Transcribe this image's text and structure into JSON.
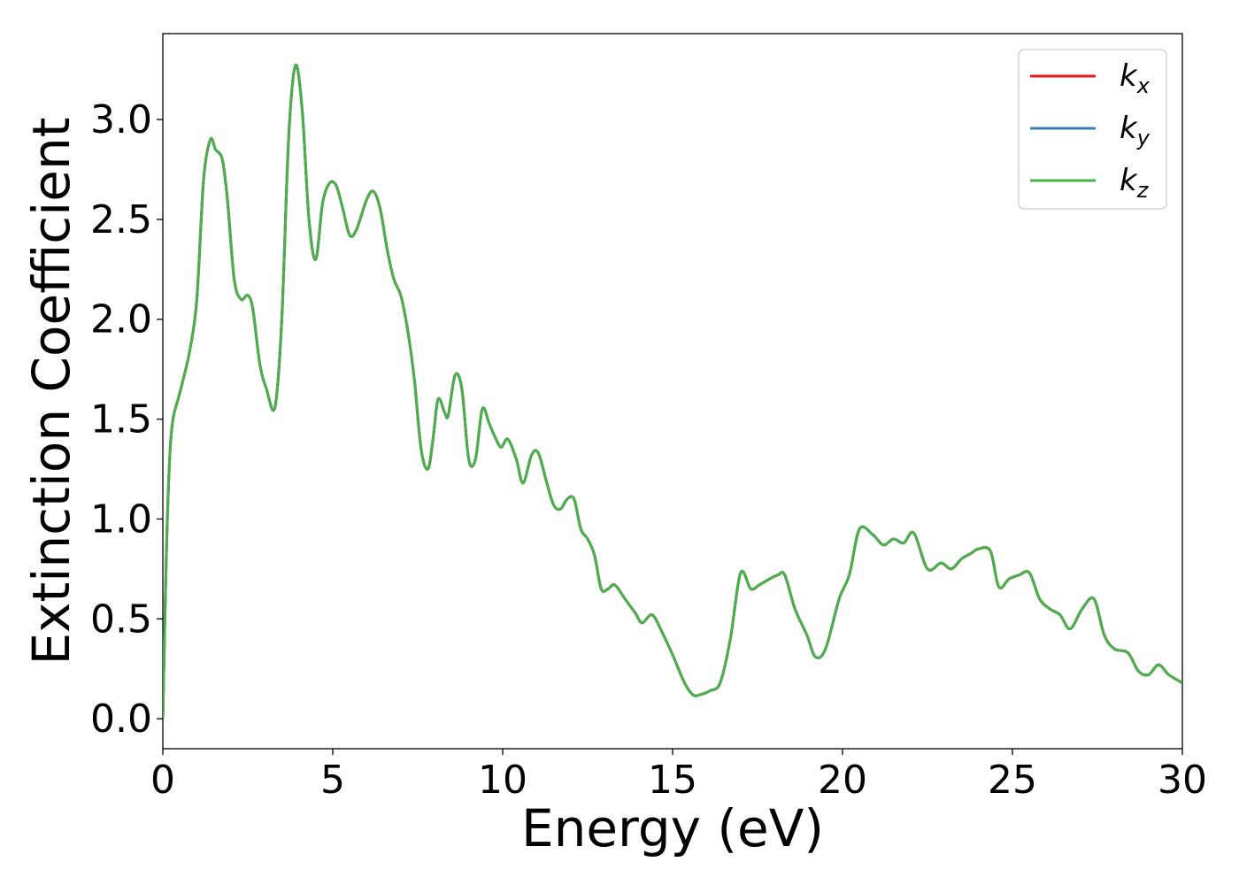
{
  "chart_data": {
    "type": "line",
    "xlabel": "Energy (eV)",
    "ylabel": "Extinction Coefficient",
    "xlim": [
      0,
      30
    ],
    "ylim": [
      -0.15,
      3.43
    ],
    "xticks": [
      0,
      5,
      10,
      15,
      20,
      25,
      30
    ],
    "yticks": [
      0.0,
      0.5,
      1.0,
      1.5,
      2.0,
      2.5,
      3.0
    ],
    "xtick_labels": [
      "0",
      "5",
      "10",
      "15",
      "20",
      "25",
      "30"
    ],
    "ytick_labels": [
      "0.0",
      "0.5",
      "1.0",
      "1.5",
      "2.0",
      "2.5",
      "3.0"
    ],
    "grid": false,
    "legend_position": "top-right",
    "colors": {
      "kx": "#e41a1c",
      "ky": "#377eb8",
      "kz": "#4daf4a"
    },
    "x": [
      0,
      0.1,
      0.2,
      0.3,
      0.45,
      0.6,
      0.8,
      1.0,
      1.2,
      1.4,
      1.55,
      1.75,
      1.9,
      2.1,
      2.3,
      2.5,
      2.65,
      2.85,
      3.05,
      3.3,
      3.5,
      3.7,
      3.9,
      4.1,
      4.3,
      4.5,
      4.7,
      4.9,
      5.1,
      5.3,
      5.5,
      5.7,
      6.0,
      6.2,
      6.4,
      6.6,
      6.8,
      7.0,
      7.2,
      7.4,
      7.6,
      7.8,
      7.95,
      8.1,
      8.3,
      8.4,
      8.6,
      8.8,
      9.0,
      9.2,
      9.4,
      9.6,
      9.75,
      9.95,
      10.15,
      10.4,
      10.6,
      10.85,
      11.05,
      11.3,
      11.5,
      11.7,
      11.9,
      12.1,
      12.3,
      12.5,
      12.7,
      12.9,
      13.1,
      13.3,
      13.6,
      13.9,
      14.1,
      14.4,
      14.7,
      15.0,
      15.35,
      15.6,
      15.8,
      16.1,
      16.4,
      16.7,
      17.0,
      17.3,
      17.55,
      17.85,
      18.1,
      18.3,
      18.6,
      18.95,
      19.2,
      19.5,
      19.9,
      20.2,
      20.5,
      20.9,
      21.2,
      21.5,
      21.8,
      22.1,
      22.5,
      22.9,
      23.2,
      23.5,
      23.8,
      24.0,
      24.35,
      24.6,
      24.9,
      25.2,
      25.5,
      25.8,
      26.1,
      26.4,
      26.7,
      27.05,
      27.4,
      27.7,
      28.0,
      28.4,
      28.7,
      29.0,
      29.3,
      29.6,
      30.0
    ],
    "series": [
      {
        "name": "k_x",
        "label_base": "k",
        "label_sub": "x",
        "color_key": "kx"
      },
      {
        "name": "k_y",
        "label_base": "k",
        "label_sub": "y",
        "color_key": "ky"
      },
      {
        "name": "k_z",
        "label_base": "k",
        "label_sub": "z",
        "color_key": "kz"
      }
    ],
    "values": [
      0.0,
      0.8,
      1.3,
      1.5,
      1.6,
      1.7,
      1.85,
      2.1,
      2.7,
      2.9,
      2.85,
      2.8,
      2.6,
      2.2,
      2.1,
      2.12,
      2.05,
      1.78,
      1.65,
      1.56,
      2.0,
      2.9,
      3.27,
      3.05,
      2.5,
      2.3,
      2.58,
      2.68,
      2.67,
      2.55,
      2.42,
      2.45,
      2.6,
      2.64,
      2.55,
      2.35,
      2.2,
      2.12,
      1.95,
      1.7,
      1.35,
      1.25,
      1.4,
      1.6,
      1.53,
      1.52,
      1.72,
      1.65,
      1.3,
      1.3,
      1.55,
      1.48,
      1.42,
      1.36,
      1.4,
      1.3,
      1.18,
      1.32,
      1.33,
      1.18,
      1.07,
      1.05,
      1.1,
      1.1,
      0.95,
      0.9,
      0.82,
      0.65,
      0.65,
      0.67,
      0.6,
      0.53,
      0.48,
      0.52,
      0.43,
      0.32,
      0.18,
      0.12,
      0.12,
      0.14,
      0.18,
      0.4,
      0.73,
      0.65,
      0.67,
      0.7,
      0.72,
      0.72,
      0.55,
      0.42,
      0.31,
      0.35,
      0.6,
      0.72,
      0.95,
      0.92,
      0.87,
      0.9,
      0.88,
      0.93,
      0.75,
      0.78,
      0.75,
      0.8,
      0.83,
      0.85,
      0.84,
      0.66,
      0.7,
      0.72,
      0.73,
      0.6,
      0.55,
      0.52,
      0.45,
      0.55,
      0.6,
      0.42,
      0.35,
      0.33,
      0.24,
      0.22,
      0.27,
      0.22,
      0.18
    ]
  }
}
